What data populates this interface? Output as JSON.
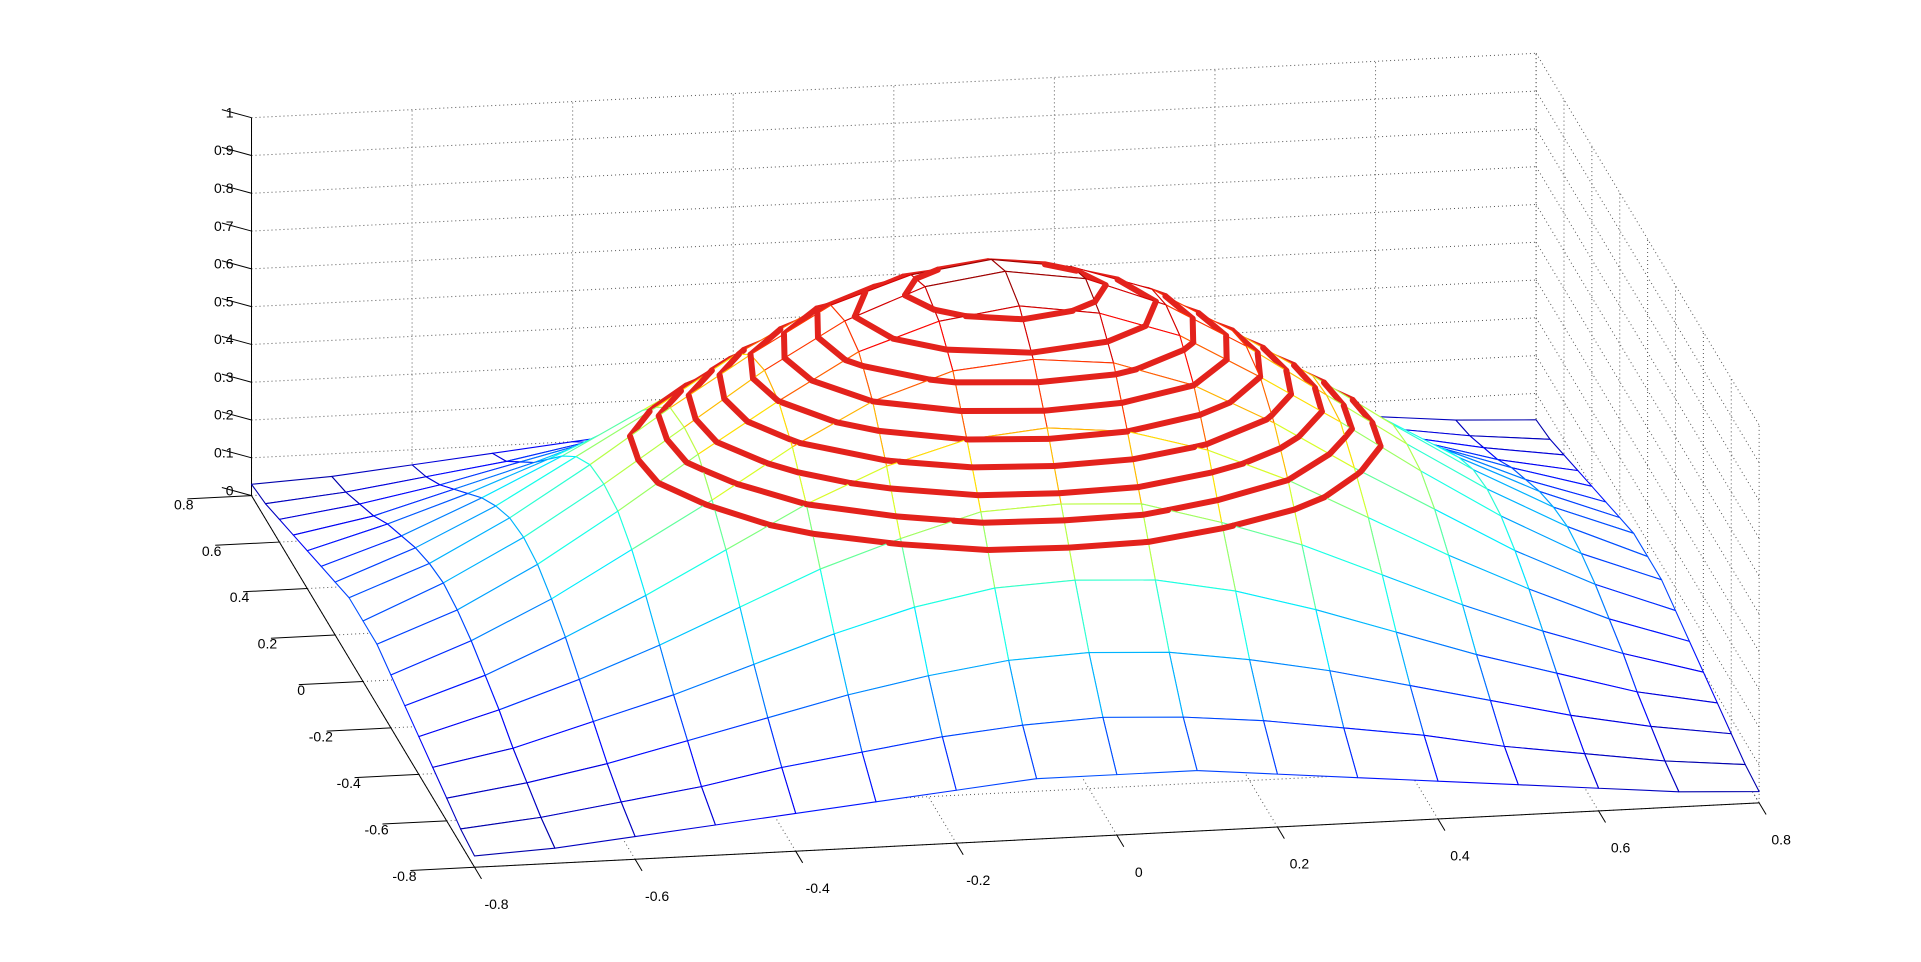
{
  "chart_data": {
    "type": "surface",
    "x": [
      -0.8,
      -0.7,
      -0.6,
      -0.5,
      -0.4,
      -0.3,
      -0.2,
      -0.1,
      0,
      0.1,
      0.2,
      0.3,
      0.4,
      0.5,
      0.6,
      0.7,
      0.8
    ],
    "y": [
      -0.8,
      -0.7,
      -0.6,
      -0.5,
      -0.4,
      -0.3,
      -0.2,
      -0.1,
      0,
      0.1,
      0.2,
      0.3,
      0.4,
      0.5,
      0.6,
      0.7,
      0.8
    ],
    "z": [
      [
        0.03,
        0.04,
        0.06,
        0.08,
        0.1,
        0.12,
        0.14,
        0.16,
        0.16,
        0.16,
        0.14,
        0.12,
        0.1,
        0.08,
        0.06,
        0.04,
        0.03
      ],
      [
        0.04,
        0.06,
        0.09,
        0.12,
        0.16,
        0.19,
        0.22,
        0.24,
        0.25,
        0.24,
        0.22,
        0.19,
        0.16,
        0.12,
        0.09,
        0.06,
        0.04
      ],
      [
        0.06,
        0.09,
        0.13,
        0.18,
        0.23,
        0.28,
        0.32,
        0.35,
        0.36,
        0.35,
        0.32,
        0.28,
        0.23,
        0.18,
        0.13,
        0.09,
        0.06
      ],
      [
        0.08,
        0.12,
        0.18,
        0.24,
        0.31,
        0.38,
        0.44,
        0.48,
        0.49,
        0.48,
        0.44,
        0.38,
        0.31,
        0.24,
        0.18,
        0.12,
        0.08
      ],
      [
        0.1,
        0.16,
        0.23,
        0.31,
        0.4,
        0.49,
        0.56,
        0.62,
        0.63,
        0.62,
        0.56,
        0.49,
        0.4,
        0.31,
        0.23,
        0.16,
        0.1
      ],
      [
        0.12,
        0.19,
        0.28,
        0.38,
        0.49,
        0.6,
        0.69,
        0.75,
        0.77,
        0.75,
        0.69,
        0.6,
        0.49,
        0.38,
        0.28,
        0.19,
        0.12
      ],
      [
        0.14,
        0.22,
        0.32,
        0.44,
        0.56,
        0.69,
        0.8,
        0.87,
        0.89,
        0.87,
        0.8,
        0.69,
        0.56,
        0.44,
        0.32,
        0.22,
        0.14
      ],
      [
        0.16,
        0.24,
        0.35,
        0.48,
        0.62,
        0.75,
        0.87,
        0.94,
        0.97,
        0.94,
        0.87,
        0.75,
        0.62,
        0.48,
        0.35,
        0.24,
        0.16
      ],
      [
        0.16,
        0.25,
        0.36,
        0.49,
        0.63,
        0.77,
        0.89,
        0.97,
        1,
        0.97,
        0.89,
        0.77,
        0.63,
        0.49,
        0.36,
        0.25,
        0.16
      ],
      [
        0.16,
        0.24,
        0.35,
        0.48,
        0.62,
        0.75,
        0.87,
        0.94,
        0.97,
        0.94,
        0.87,
        0.75,
        0.62,
        0.48,
        0.35,
        0.24,
        0.16
      ],
      [
        0.14,
        0.22,
        0.32,
        0.44,
        0.56,
        0.69,
        0.8,
        0.87,
        0.89,
        0.87,
        0.8,
        0.69,
        0.56,
        0.44,
        0.32,
        0.22,
        0.14
      ],
      [
        0.12,
        0.19,
        0.28,
        0.38,
        0.49,
        0.6,
        0.69,
        0.75,
        0.77,
        0.75,
        0.69,
        0.6,
        0.49,
        0.38,
        0.28,
        0.19,
        0.12
      ],
      [
        0.1,
        0.16,
        0.23,
        0.31,
        0.4,
        0.49,
        0.56,
        0.62,
        0.63,
        0.62,
        0.56,
        0.49,
        0.4,
        0.31,
        0.23,
        0.16,
        0.1
      ],
      [
        0.08,
        0.12,
        0.18,
        0.24,
        0.31,
        0.38,
        0.44,
        0.48,
        0.49,
        0.48,
        0.44,
        0.38,
        0.31,
        0.24,
        0.18,
        0.12,
        0.08
      ],
      [
        0.06,
        0.09,
        0.13,
        0.18,
        0.23,
        0.28,
        0.32,
        0.35,
        0.36,
        0.35,
        0.32,
        0.28,
        0.23,
        0.18,
        0.13,
        0.09,
        0.06
      ],
      [
        0.04,
        0.06,
        0.09,
        0.12,
        0.16,
        0.19,
        0.22,
        0.24,
        0.25,
        0.24,
        0.22,
        0.19,
        0.16,
        0.12,
        0.09,
        0.06,
        0.04
      ],
      [
        0.03,
        0.04,
        0.06,
        0.08,
        0.1,
        0.12,
        0.14,
        0.16,
        0.16,
        0.16,
        0.14,
        0.12,
        0.1,
        0.08,
        0.06,
        0.04,
        0.03
      ]
    ],
    "colormap": "jet",
    "contour_levels": [
      0.55,
      0.6,
      0.65,
      0.7,
      0.75,
      0.8,
      0.85,
      0.9,
      0.95
    ],
    "contour_color": "#e3221c",
    "xlim": [
      -0.8,
      0.8
    ],
    "xticks": [
      -0.8,
      -0.6,
      -0.4,
      -0.2,
      0,
      0.2,
      0.4,
      0.6,
      0.8
    ],
    "ylim": [
      -0.8,
      0.8
    ],
    "yticks": [
      -0.8,
      -0.6,
      -0.4,
      -0.2,
      0,
      0.2,
      0.4,
      0.6,
      0.8
    ],
    "zlim": [
      0,
      1
    ],
    "zticks": [
      0,
      0.1,
      0.2,
      0.3,
      0.4,
      0.5,
      0.6,
      0.7,
      0.8,
      0.9,
      1
    ],
    "grid": true
  }
}
